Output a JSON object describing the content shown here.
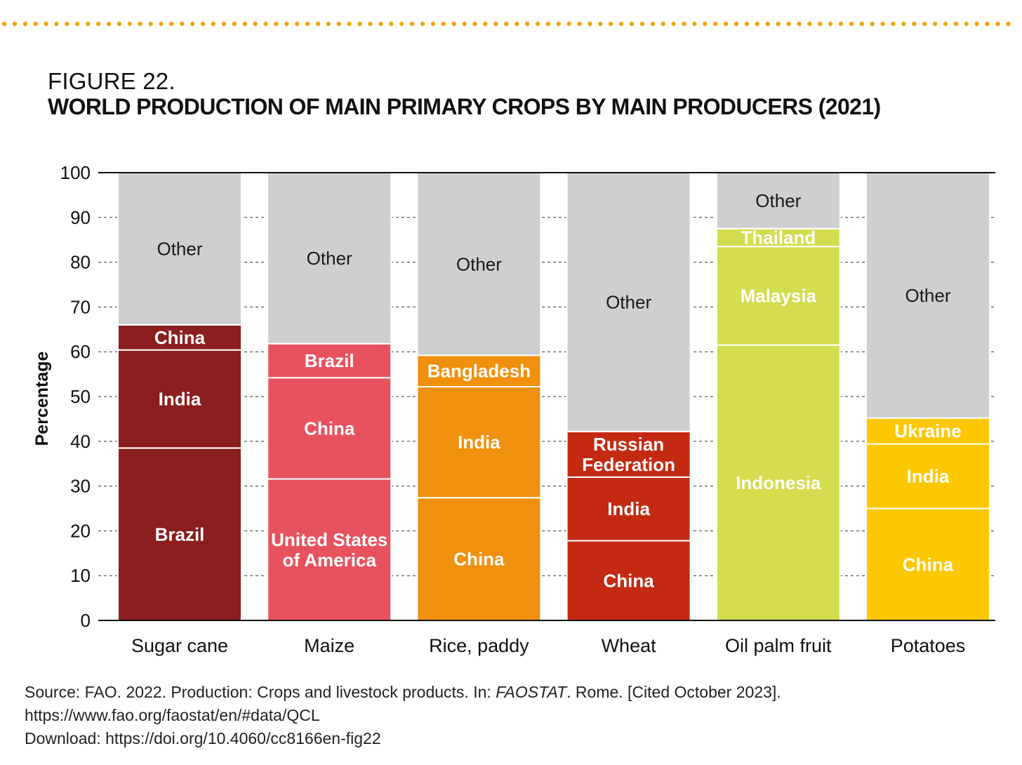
{
  "header": {
    "figure_label": "FIGURE 22.",
    "title": "WORLD PRODUCTION OF MAIN PRIMARY CROPS BY MAIN PRODUCERS (2021)",
    "dots_color": "#f2a300"
  },
  "chart_data": {
    "type": "bar",
    "stacked": true,
    "ylabel": "Percentage",
    "ylim": [
      0,
      100
    ],
    "yticks": [
      0,
      10,
      20,
      30,
      40,
      50,
      60,
      70,
      80,
      90,
      100
    ],
    "grid": "dashed horizontal at each tick",
    "categories": [
      {
        "name": "Sugar cane",
        "segments": [
          {
            "label": "Brazil",
            "value": 38.5,
            "color": "#8b1e1e"
          },
          {
            "label": "India",
            "value": 21.9,
            "color": "#8b1e1e"
          },
          {
            "label": "China",
            "value": 5.6,
            "color": "#8b1e1e"
          },
          {
            "label": "Other",
            "value": 34.0,
            "color": "#cfcfcf"
          }
        ]
      },
      {
        "name": "Maize",
        "segments": [
          {
            "label": "United States\nof America",
            "value": 31.6,
            "color": "#e8525e"
          },
          {
            "label": "China",
            "value": 22.6,
            "color": "#e8525e"
          },
          {
            "label": "Brazil",
            "value": 7.6,
            "color": "#e8525e"
          },
          {
            "label": "Other",
            "value": 38.2,
            "color": "#cfcfcf"
          }
        ]
      },
      {
        "name": "Rice, paddy",
        "segments": [
          {
            "label": "China",
            "value": 27.4,
            "color": "#f0900c"
          },
          {
            "label": "India",
            "value": 24.8,
            "color": "#f0900c"
          },
          {
            "label": "Bangladesh",
            "value": 7.0,
            "color": "#f0900c"
          },
          {
            "label": "Other",
            "value": 40.8,
            "color": "#cfcfcf"
          }
        ]
      },
      {
        "name": "Wheat",
        "segments": [
          {
            "label": "China",
            "value": 17.8,
            "color": "#c42a12"
          },
          {
            "label": "India",
            "value": 14.2,
            "color": "#c42a12"
          },
          {
            "label": "Russian\nFederation",
            "value": 10.2,
            "color": "#c42a12"
          },
          {
            "label": "Other",
            "value": 57.8,
            "color": "#cfcfcf"
          }
        ]
      },
      {
        "name": "Oil palm fruit",
        "segments": [
          {
            "label": "Indonesia",
            "value": 61.5,
            "color": "#d4dc4f"
          },
          {
            "label": "Malaysia",
            "value": 22.0,
            "color": "#d4dc4f"
          },
          {
            "label": "Thailand",
            "value": 4.0,
            "color": "#d4dc4f"
          },
          {
            "label": "Other",
            "value": 12.5,
            "color": "#cfcfcf"
          }
        ]
      },
      {
        "name": "Potatoes",
        "segments": [
          {
            "label": "China",
            "value": 25.0,
            "color": "#fdc800"
          },
          {
            "label": "India",
            "value": 14.4,
            "color": "#fdc800"
          },
          {
            "label": "Ukraine",
            "value": 5.8,
            "color": "#fdc800"
          },
          {
            "label": "Other",
            "value": 54.8,
            "color": "#cfcfcf"
          }
        ]
      }
    ]
  },
  "source": {
    "line1_prefix": "Source: FAO. 2022. Production: Crops and livestock products. In: ",
    "line1_italic": "FAOSTAT",
    "line1_suffix": ". Rome. [Cited October 2023].",
    "line2": "https://www.fao.org/faostat/en/#data/QCL",
    "line3": "Download: https://doi.org/10.4060/cc8166en-fig22"
  }
}
